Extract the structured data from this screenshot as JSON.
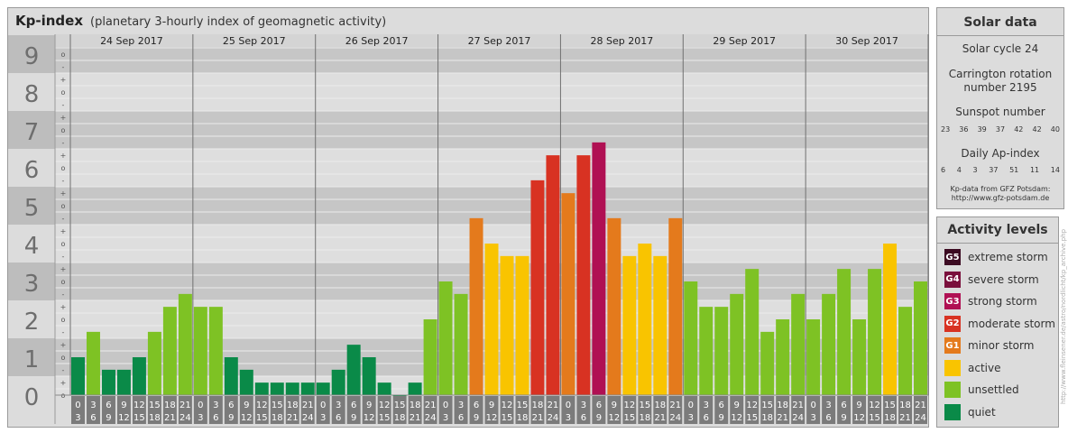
{
  "header": {
    "title": "Kp-index",
    "subtitle": "(planetary 3-hourly index of geomagnetic activity)"
  },
  "chart_data": {
    "type": "bar",
    "ylim": [
      0,
      9
    ],
    "y_ticks": [
      "0",
      "1",
      "2",
      "3",
      "4",
      "5",
      "6",
      "7",
      "8",
      "9"
    ],
    "minor_marks": [
      "o",
      "-",
      "+"
    ],
    "days": [
      "24 Sep 2017",
      "25 Sep 2017",
      "26 Sep 2017",
      "27 Sep 2017",
      "28 Sep 2017",
      "29 Sep 2017",
      "30 Sep 2017"
    ],
    "slot_top": [
      "0",
      "3",
      "6",
      "9",
      "12",
      "15",
      "18",
      "21"
    ],
    "slot_bottom": [
      "3",
      "6",
      "9",
      "12",
      "15",
      "18",
      "21",
      "24"
    ],
    "values": [
      [
        1,
        1.67,
        0.67,
        0.67,
        1,
        1.67,
        2.33,
        2.67
      ],
      [
        2.33,
        2.33,
        1,
        0.67,
        0.33,
        0.33,
        0.33,
        0.33
      ],
      [
        0.33,
        0.67,
        1.33,
        1,
        0.33,
        0,
        0.33,
        2
      ],
      [
        3,
        2.67,
        4.67,
        4,
        3.67,
        3.67,
        5.67,
        6.33
      ],
      [
        5.33,
        6.33,
        6.67,
        4.67,
        3.67,
        4,
        3.67,
        4.67
      ],
      [
        3,
        2.33,
        2.33,
        2.67,
        3.33,
        1.67,
        2,
        2.67
      ],
      [
        2,
        2.67,
        3.33,
        2,
        3.33,
        4,
        2.33,
        3
      ]
    ],
    "colors": {
      "quiet": "#0a8a48",
      "unsettled": "#7ec224",
      "active": "#f9c400",
      "minor_storm": "#e47a1c",
      "moderate_storm": "#d83222",
      "strong_storm": "#b01053",
      "severe_storm": "#7a0f3c",
      "extreme_storm": "#3c0b22"
    }
  },
  "sidebar": {
    "solar_title": "Solar data",
    "solar_cycle": "Solar cycle 24",
    "carrington_line1": "Carrington rotation",
    "carrington_line2": "number 2195",
    "sunspot_title": "Sunspot number",
    "sunspot_values": [
      "23",
      "36",
      "39",
      "37",
      "42",
      "42",
      "40"
    ],
    "ap_title": "Daily Ap-index",
    "ap_values": [
      "6",
      "4",
      "3",
      "37",
      "51",
      "11",
      "14"
    ],
    "source_line1": "Kp-data from GFZ Potsdam:",
    "source_line2": "http://www.gfz-potsdam.de",
    "activity_title": "Activity levels",
    "levels": [
      {
        "badge": "G5",
        "label": "extreme storm",
        "color": "#3c0b22"
      },
      {
        "badge": "G4",
        "label": "severe storm",
        "color": "#7a0f3c"
      },
      {
        "badge": "G3",
        "label": "strong storm",
        "color": "#b01053"
      },
      {
        "badge": "G2",
        "label": "moderate storm",
        "color": "#d83222"
      },
      {
        "badge": "G1",
        "label": "minor storm",
        "color": "#e47a1c"
      },
      {
        "badge": "",
        "label": "active",
        "color": "#f9c400"
      },
      {
        "badge": "",
        "label": "unsettled",
        "color": "#7ec224"
      },
      {
        "badge": "",
        "label": "quiet",
        "color": "#0a8a48"
      }
    ]
  },
  "watermark": "http://www.fleinsener.de/astro/nordlicht/kp_archive.php"
}
